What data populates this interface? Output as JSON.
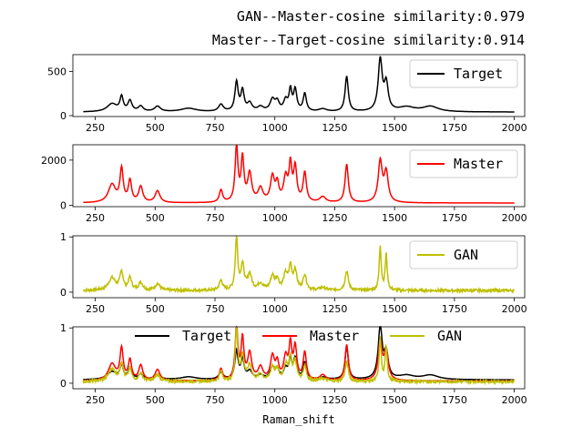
{
  "titles": {
    "line1": "GAN--Master-cosine similarity:0.979",
    "line2": "Master--Target-cosine similarity:0.914"
  },
  "chart_data": [
    {
      "type": "line",
      "xlabel": "",
      "xlim": [
        200,
        2000
      ],
      "ylim": [
        -10,
        690
      ],
      "xticks": [
        250,
        500,
        750,
        1000,
        1250,
        1500,
        1750,
        2000
      ],
      "yticks": [
        0,
        500
      ],
      "legend_position": "top-right",
      "series": [
        {
          "name": "Target",
          "color": "#000000",
          "peaks": [
            [
              320,
              90,
              25
            ],
            [
              360,
              160,
              8
            ],
            [
              395,
              120,
              10
            ],
            [
              440,
              60,
              12
            ],
            [
              510,
              60,
              15
            ],
            [
              640,
              40,
              40
            ],
            [
              775,
              80,
              12
            ],
            [
              840,
              330,
              8
            ],
            [
              865,
              230,
              8
            ],
            [
              895,
              90,
              12
            ],
            [
              940,
              50,
              15
            ],
            [
              990,
              130,
              12
            ],
            [
              1010,
              100,
              10
            ],
            [
              1045,
              120,
              10
            ],
            [
              1065,
              230,
              7
            ],
            [
              1085,
              240,
              8
            ],
            [
              1125,
              200,
              8
            ],
            [
              1200,
              30,
              20
            ],
            [
              1300,
              400,
              8
            ],
            [
              1440,
              580,
              10
            ],
            [
              1465,
              300,
              10
            ],
            [
              1550,
              50,
              40
            ],
            [
              1650,
              60,
              40
            ]
          ],
          "baseline": 40,
          "noise": 0
        }
      ]
    },
    {
      "type": "line",
      "xlabel": "",
      "xlim": [
        200,
        2000
      ],
      "ylim": [
        -60,
        2680
      ],
      "xticks": [
        250,
        500,
        750,
        1000,
        1250,
        1500,
        1750,
        2000
      ],
      "yticks": [
        0,
        2000
      ],
      "legend_position": "top-right",
      "series": [
        {
          "name": "Master",
          "color": "#ff0000",
          "peaks": [
            [
              320,
              800,
              18
            ],
            [
              360,
              1450,
              8
            ],
            [
              395,
              950,
              8
            ],
            [
              440,
              700,
              10
            ],
            [
              510,
              520,
              12
            ],
            [
              775,
              550,
              8
            ],
            [
              840,
              2450,
              7
            ],
            [
              865,
              1900,
              7
            ],
            [
              895,
              1250,
              10
            ],
            [
              940,
              600,
              12
            ],
            [
              990,
              1100,
              10
            ],
            [
              1010,
              750,
              8
            ],
            [
              1045,
              1050,
              10
            ],
            [
              1065,
              1550,
              7
            ],
            [
              1085,
              1500,
              8
            ],
            [
              1125,
              1300,
              8
            ],
            [
              1200,
              250,
              15
            ],
            [
              1300,
              1700,
              8
            ],
            [
              1440,
              1800,
              10
            ],
            [
              1465,
              1300,
              10
            ]
          ],
          "baseline": 100,
          "noise": 0
        }
      ]
    },
    {
      "type": "line",
      "xlabel": "",
      "xlim": [
        200,
        2000
      ],
      "ylim": [
        -0.1,
        1.02
      ],
      "xticks": [
        250,
        500,
        750,
        1000,
        1250,
        1500,
        1750,
        2000
      ],
      "yticks": [
        0,
        1
      ],
      "legend_position": "top-right",
      "series": [
        {
          "name": "GAN",
          "color": "#bfbf00",
          "peaks": [
            [
              320,
              0.22,
              18
            ],
            [
              360,
              0.32,
              8
            ],
            [
              395,
              0.22,
              8
            ],
            [
              440,
              0.14,
              10
            ],
            [
              510,
              0.12,
              12
            ],
            [
              775,
              0.18,
              8
            ],
            [
              840,
              0.95,
              6
            ],
            [
              865,
              0.45,
              8
            ],
            [
              895,
              0.28,
              10
            ],
            [
              940,
              0.12,
              12
            ],
            [
              990,
              0.25,
              10
            ],
            [
              1010,
              0.18,
              8
            ],
            [
              1045,
              0.28,
              10
            ],
            [
              1065,
              0.4,
              7
            ],
            [
              1085,
              0.35,
              8
            ],
            [
              1125,
              0.28,
              8
            ],
            [
              1200,
              0.05,
              15
            ],
            [
              1300,
              0.35,
              8
            ],
            [
              1440,
              0.8,
              5
            ],
            [
              1465,
              0.65,
              5
            ]
          ],
          "baseline": 0.03,
          "noise": 0.025
        }
      ]
    },
    {
      "type": "line",
      "xlabel": "Raman_shift",
      "xlim": [
        200,
        2000
      ],
      "ylim": [
        -0.1,
        1.02
      ],
      "xticks": [
        250,
        500,
        750,
        1000,
        1250,
        1500,
        1750,
        2000
      ],
      "yticks": [
        0,
        1
      ],
      "legend_position": "top",
      "series": [
        {
          "name": "Target",
          "color": "#000000",
          "peaks": [
            [
              320,
              0.14,
              25
            ],
            [
              360,
              0.24,
              8
            ],
            [
              395,
              0.18,
              10
            ],
            [
              440,
              0.09,
              12
            ],
            [
              510,
              0.09,
              15
            ],
            [
              640,
              0.05,
              40
            ],
            [
              775,
              0.12,
              12
            ],
            [
              840,
              0.5,
              8
            ],
            [
              865,
              0.35,
              8
            ],
            [
              895,
              0.14,
              12
            ],
            [
              940,
              0.07,
              15
            ],
            [
              990,
              0.2,
              12
            ],
            [
              1010,
              0.15,
              10
            ],
            [
              1045,
              0.18,
              10
            ],
            [
              1065,
              0.35,
              7
            ],
            [
              1085,
              0.36,
              8
            ],
            [
              1125,
              0.3,
              8
            ],
            [
              1200,
              0.04,
              20
            ],
            [
              1300,
              0.6,
              8
            ],
            [
              1440,
              0.93,
              10
            ],
            [
              1465,
              0.45,
              10
            ],
            [
              1550,
              0.07,
              40
            ],
            [
              1650,
              0.08,
              40
            ]
          ],
          "baseline": 0.06,
          "noise": 0
        },
        {
          "name": "Master",
          "color": "#ff0000",
          "peaks": [
            [
              320,
              0.3,
              18
            ],
            [
              360,
              0.56,
              8
            ],
            [
              395,
              0.36,
              8
            ],
            [
              440,
              0.27,
              10
            ],
            [
              510,
              0.2,
              12
            ],
            [
              775,
              0.21,
              8
            ],
            [
              840,
              0.95,
              7
            ],
            [
              865,
              0.73,
              7
            ],
            [
              895,
              0.48,
              10
            ],
            [
              940,
              0.23,
              12
            ],
            [
              990,
              0.42,
              10
            ],
            [
              1010,
              0.29,
              8
            ],
            [
              1045,
              0.4,
              10
            ],
            [
              1065,
              0.6,
              7
            ],
            [
              1085,
              0.58,
              8
            ],
            [
              1125,
              0.5,
              8
            ],
            [
              1200,
              0.1,
              15
            ],
            [
              1300,
              0.65,
              8
            ],
            [
              1440,
              0.69,
              10
            ],
            [
              1465,
              0.5,
              10
            ]
          ],
          "baseline": 0.04,
          "noise": 0
        },
        {
          "name": "GAN",
          "color": "#bfbf00",
          "peaks": [
            [
              320,
              0.22,
              18
            ],
            [
              360,
              0.32,
              8
            ],
            [
              395,
              0.22,
              8
            ],
            [
              440,
              0.14,
              10
            ],
            [
              510,
              0.12,
              12
            ],
            [
              775,
              0.18,
              8
            ],
            [
              840,
              0.95,
              6
            ],
            [
              865,
              0.45,
              8
            ],
            [
              895,
              0.28,
              10
            ],
            [
              940,
              0.12,
              12
            ],
            [
              990,
              0.25,
              10
            ],
            [
              1010,
              0.18,
              8
            ],
            [
              1045,
              0.28,
              10
            ],
            [
              1065,
              0.4,
              7
            ],
            [
              1085,
              0.35,
              8
            ],
            [
              1125,
              0.28,
              8
            ],
            [
              1200,
              0.05,
              15
            ],
            [
              1300,
              0.35,
              8
            ],
            [
              1440,
              0.8,
              5
            ],
            [
              1465,
              0.65,
              5
            ]
          ],
          "baseline": 0.03,
          "noise": 0.025
        }
      ]
    }
  ]
}
